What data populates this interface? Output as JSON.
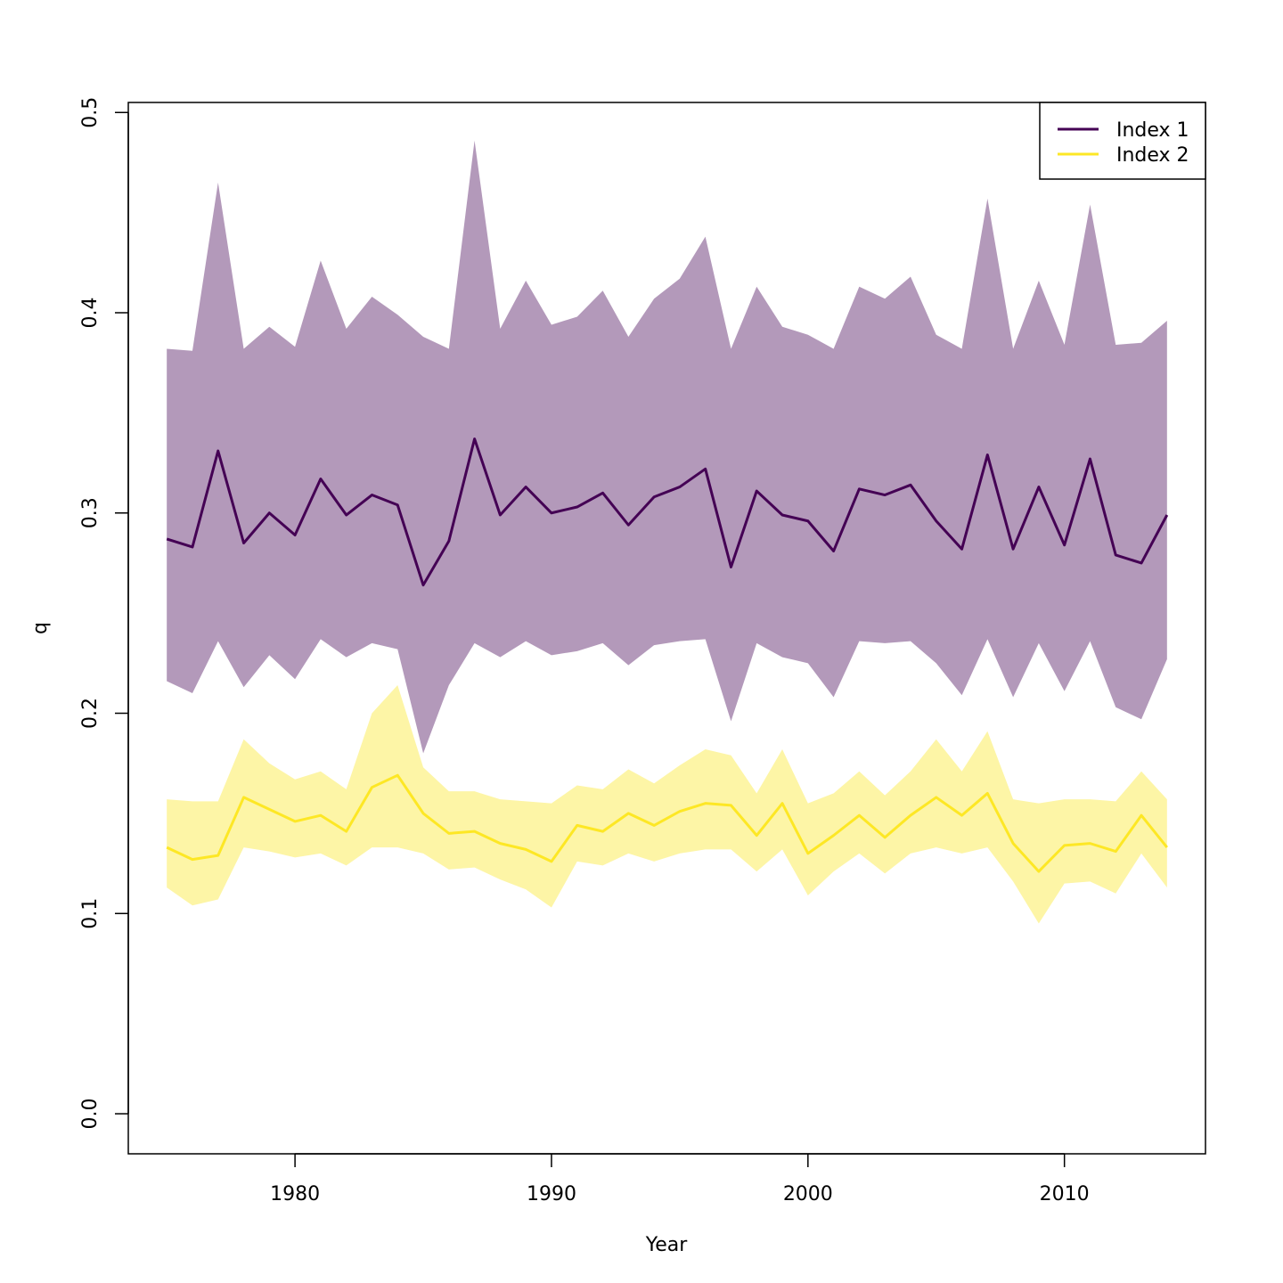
{
  "chart_data": {
    "type": "line",
    "title": "",
    "xlabel": "Year",
    "ylabel": "q",
    "xlim": [
      1973.5,
      2015.5
    ],
    "ylim": [
      -0.02,
      0.505
    ],
    "xticks": [
      1980,
      1990,
      2000,
      2010
    ],
    "xtick_labels": [
      "1980",
      "1990",
      "2000",
      "2010"
    ],
    "yticks": [
      0.0,
      0.1,
      0.2,
      0.3,
      0.4,
      0.5
    ],
    "ytick_labels": [
      "0.0",
      "0.1",
      "0.2",
      "0.3",
      "0.4",
      "0.5"
    ],
    "grid": false,
    "legend_position": "top-right",
    "x": [
      1975,
      1976,
      1977,
      1978,
      1979,
      1980,
      1981,
      1982,
      1983,
      1984,
      1985,
      1986,
      1987,
      1988,
      1989,
      1990,
      1991,
      1992,
      1993,
      1994,
      1995,
      1996,
      1997,
      1998,
      1999,
      2000,
      2001,
      2002,
      2003,
      2004,
      2005,
      2006,
      2007,
      2008,
      2009,
      2010,
      2011,
      2012,
      2013,
      2014
    ],
    "series": [
      {
        "name": "Index 1",
        "color": "#440154",
        "band_color": "#b399ba",
        "values": [
          0.287,
          0.283,
          0.331,
          0.285,
          0.3,
          0.289,
          0.317,
          0.299,
          0.309,
          0.304,
          0.264,
          0.286,
          0.337,
          0.299,
          0.313,
          0.3,
          0.303,
          0.31,
          0.294,
          0.308,
          0.313,
          0.322,
          0.273,
          0.311,
          0.299,
          0.296,
          0.281,
          0.312,
          0.309,
          0.314,
          0.296,
          0.282,
          0.329,
          0.282,
          0.313,
          0.284,
          0.327,
          0.279,
          0.275,
          0.299
        ],
        "lower": [
          0.216,
          0.21,
          0.236,
          0.213,
          0.229,
          0.217,
          0.237,
          0.228,
          0.235,
          0.232,
          0.18,
          0.214,
          0.235,
          0.228,
          0.236,
          0.229,
          0.231,
          0.235,
          0.224,
          0.234,
          0.236,
          0.237,
          0.196,
          0.235,
          0.228,
          0.225,
          0.208,
          0.236,
          0.235,
          0.236,
          0.225,
          0.209,
          0.237,
          0.208,
          0.235,
          0.211,
          0.236,
          0.203,
          0.197,
          0.227
        ],
        "upper": [
          0.382,
          0.381,
          0.465,
          0.382,
          0.393,
          0.383,
          0.426,
          0.392,
          0.408,
          0.399,
          0.388,
          0.382,
          0.486,
          0.392,
          0.416,
          0.394,
          0.398,
          0.411,
          0.388,
          0.407,
          0.417,
          0.438,
          0.382,
          0.413,
          0.393,
          0.389,
          0.382,
          0.413,
          0.407,
          0.418,
          0.389,
          0.382,
          0.457,
          0.382,
          0.416,
          0.384,
          0.454,
          0.384,
          0.385,
          0.396
        ]
      },
      {
        "name": "Index 2",
        "color": "#fde725",
        "band_color": "#fdf5a6",
        "values": [
          0.133,
          0.127,
          0.129,
          0.158,
          0.152,
          0.146,
          0.149,
          0.141,
          0.163,
          0.169,
          0.15,
          0.14,
          0.141,
          0.135,
          0.132,
          0.126,
          0.144,
          0.141,
          0.15,
          0.144,
          0.151,
          0.155,
          0.154,
          0.139,
          0.155,
          0.13,
          0.139,
          0.149,
          0.138,
          0.149,
          0.158,
          0.149,
          0.16,
          0.135,
          0.121,
          0.134,
          0.135,
          0.131,
          0.149,
          0.133
        ],
        "lower": [
          0.113,
          0.104,
          0.107,
          0.133,
          0.131,
          0.128,
          0.13,
          0.124,
          0.133,
          0.133,
          0.13,
          0.122,
          0.123,
          0.117,
          0.112,
          0.103,
          0.126,
          0.124,
          0.13,
          0.126,
          0.13,
          0.132,
          0.132,
          0.121,
          0.132,
          0.109,
          0.121,
          0.13,
          0.12,
          0.13,
          0.133,
          0.13,
          0.133,
          0.116,
          0.095,
          0.115,
          0.116,
          0.11,
          0.13,
          0.113
        ],
        "upper": [
          0.157,
          0.156,
          0.156,
          0.187,
          0.175,
          0.167,
          0.171,
          0.162,
          0.2,
          0.214,
          0.173,
          0.161,
          0.161,
          0.157,
          0.156,
          0.155,
          0.164,
          0.162,
          0.172,
          0.165,
          0.174,
          0.182,
          0.179,
          0.16,
          0.182,
          0.155,
          0.16,
          0.171,
          0.159,
          0.171,
          0.187,
          0.171,
          0.191,
          0.157,
          0.155,
          0.157,
          0.157,
          0.156,
          0.171,
          0.157
        ]
      }
    ]
  }
}
